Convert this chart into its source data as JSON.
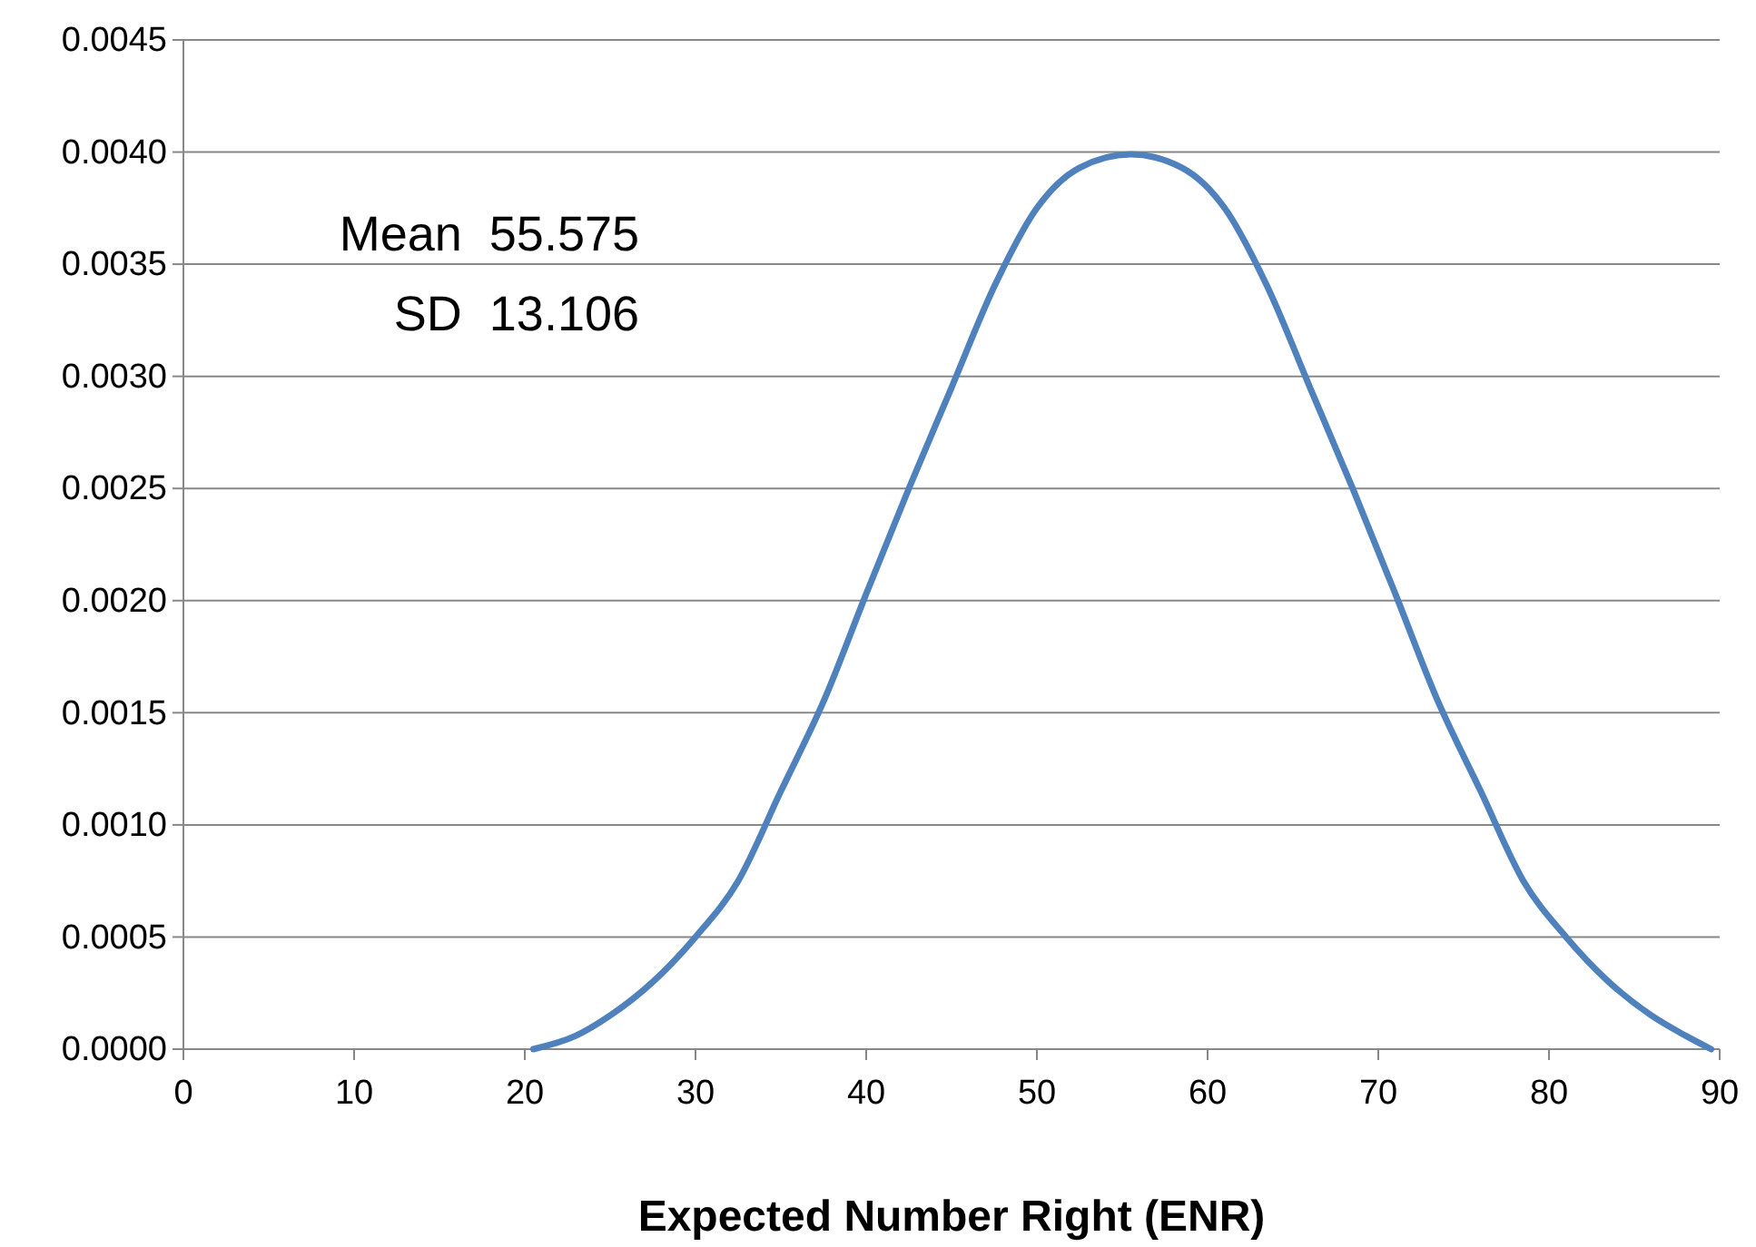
{
  "chart_data": {
    "type": "line",
    "xlabel": "Expected Number Right (ENR)",
    "annotations": [
      "Mean  55.575",
      "SD  13.106"
    ],
    "series": [
      {
        "color": "#4f81bd",
        "x": [
          20.5,
          23,
          25,
          27.5,
          30,
          32.5,
          35,
          37.5,
          40,
          42.5,
          45,
          47.5,
          50,
          52.5,
          55.5,
          58.5,
          61,
          63.5,
          66,
          68.5,
          71,
          73.5,
          76,
          78.5,
          81,
          83.5,
          86,
          88,
          89.5
        ],
        "values": [
          0,
          6e-05,
          0.00015,
          0.0003,
          0.0005,
          0.00075,
          0.00115,
          0.00155,
          0.00203,
          0.0025,
          0.00295,
          0.0034,
          0.00375,
          0.00393,
          0.00399,
          0.00393,
          0.00375,
          0.0034,
          0.00295,
          0.0025,
          0.00203,
          0.00155,
          0.00115,
          0.00075,
          0.0005,
          0.0003,
          0.00015,
          6e-05,
          0
        ]
      }
    ],
    "xlim": [
      0,
      90
    ],
    "xticks": [
      0,
      10,
      20,
      30,
      40,
      50,
      60,
      70,
      80,
      90
    ],
    "ylim": [
      0,
      0.0045
    ],
    "yticks": [
      {
        "value": 0,
        "label": "0.0000"
      },
      {
        "value": 0.0005,
        "label": "0.0005"
      },
      {
        "value": 0.001,
        "label": "0.0010"
      },
      {
        "value": 0.0015,
        "label": "0.0015"
      },
      {
        "value": 0.002,
        "label": "0.0020"
      },
      {
        "value": 0.0025,
        "label": "0.0025"
      },
      {
        "value": 0.003,
        "label": "0.0030"
      },
      {
        "value": 0.0035,
        "label": "0.0035"
      },
      {
        "value": 0.004,
        "label": "0.0040"
      },
      {
        "value": 0.0045,
        "label": "0.0045"
      }
    ],
    "grid": "y",
    "marker": "none",
    "line_style": "solid",
    "legend": false
  }
}
